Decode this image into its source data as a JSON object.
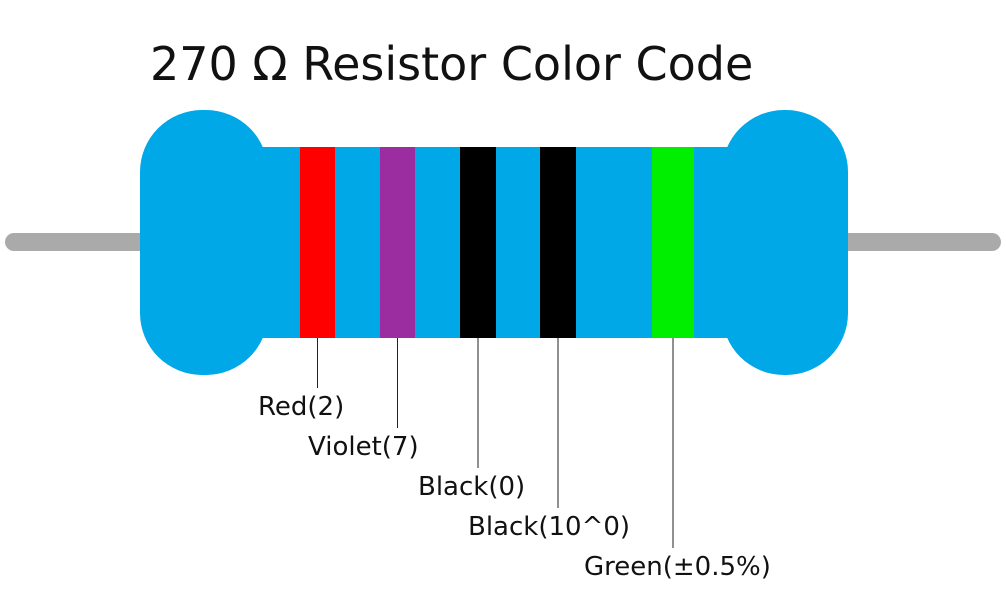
{
  "title": "270 Ω Resistor Color Code",
  "bands": [
    {
      "label": "Red(2)",
      "color": "#ff0000"
    },
    {
      "label": "Violet(7)",
      "color": "#9b2da0"
    },
    {
      "label": "Black(0)",
      "color": "#000000"
    },
    {
      "label": "Black(10^0)",
      "color": "#000000"
    },
    {
      "label": "Green(±0.5%)",
      "color": "#00ee00"
    }
  ]
}
